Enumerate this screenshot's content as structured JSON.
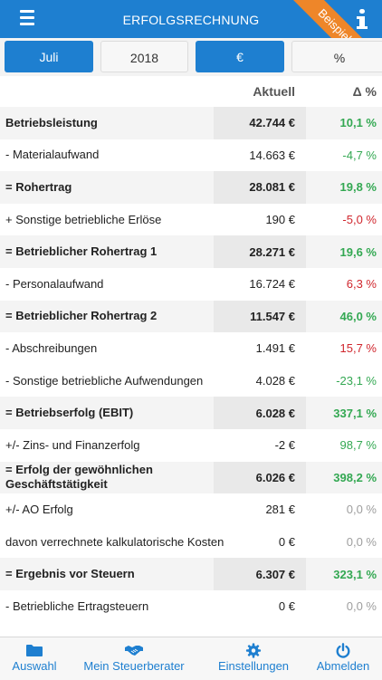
{
  "header": {
    "title": "ERFOLGSRECHNUNG",
    "ribbon": "Beispieldaten"
  },
  "segments": [
    {
      "label": "Juli",
      "active": true
    },
    {
      "label": "2018",
      "active": false
    },
    {
      "label": "€",
      "active": true
    },
    {
      "label": "%",
      "active": false
    }
  ],
  "table": {
    "col_actual": "Aktuell",
    "col_delta": "Δ %",
    "rows": [
      {
        "label": "Betriebsleistung",
        "value": "42.744 €",
        "delta": "10,1 %",
        "bold": true,
        "trend": "pos"
      },
      {
        "label": "- Materialaufwand",
        "value": "14.663 €",
        "delta": "-4,7 %",
        "bold": false,
        "trend": "pos"
      },
      {
        "label": "= Rohertrag",
        "value": "28.081 €",
        "delta": "19,8 %",
        "bold": true,
        "trend": "pos"
      },
      {
        "label": "+ Sonstige betriebliche Erlöse",
        "value": "190 €",
        "delta": "-5,0 %",
        "bold": false,
        "trend": "neg"
      },
      {
        "label": "= Betrieblicher Rohertrag 1",
        "value": "28.271 €",
        "delta": "19,6 %",
        "bold": true,
        "trend": "pos"
      },
      {
        "label": "- Personalaufwand",
        "value": "16.724 €",
        "delta": "6,3 %",
        "bold": false,
        "trend": "neg"
      },
      {
        "label": "= Betrieblicher Rohertrag 2",
        "value": "11.547 €",
        "delta": "46,0 %",
        "bold": true,
        "trend": "pos"
      },
      {
        "label": "- Abschreibungen",
        "value": "1.491 €",
        "delta": "15,7 %",
        "bold": false,
        "trend": "neg"
      },
      {
        "label": "- Sonstige betriebliche Aufwendungen",
        "value": "4.028 €",
        "delta": "-23,1 %",
        "bold": false,
        "trend": "pos"
      },
      {
        "label": "= Betriebserfolg (EBIT)",
        "value": "6.028 €",
        "delta": "337,1 %",
        "bold": true,
        "trend": "pos"
      },
      {
        "label": "+/- Zins- und Finanzerfolg",
        "value": "-2 €",
        "delta": "98,7 %",
        "bold": false,
        "trend": "pos"
      },
      {
        "label": "= Erfolg der gewöhnlichen Geschäftstätigkeit",
        "value": "6.026 €",
        "delta": "398,2 %",
        "bold": true,
        "trend": "pos"
      },
      {
        "label": "+/- AO Erfolg",
        "value": "281 €",
        "delta": "0,0 %",
        "bold": false,
        "trend": "neu"
      },
      {
        "label": "davon verrechnete kalkulatorische Kosten",
        "value": "0 €",
        "delta": "0,0 %",
        "bold": false,
        "trend": "neu"
      },
      {
        "label": "= Ergebnis vor Steuern",
        "value": "6.307 €",
        "delta": "323,1 %",
        "bold": true,
        "trend": "pos"
      },
      {
        "label": "- Betriebliche Ertragsteuern",
        "value": "0 €",
        "delta": "0,0 %",
        "bold": false,
        "trend": "neu"
      }
    ]
  },
  "tabbar": [
    {
      "label": "Auswahl",
      "icon": "folder-icon"
    },
    {
      "label": "Mein Steuerberater",
      "icon": "handshake-icon"
    },
    {
      "label": "Einstellungen",
      "icon": "gear-icon"
    },
    {
      "label": "Abmelden",
      "icon": "power-icon"
    }
  ],
  "colors": {
    "accent": "#1e7fd0",
    "ribbon": "#ee8629",
    "positive": "#33a852",
    "negative": "#d0262d",
    "neutral": "#9e9e9e"
  }
}
